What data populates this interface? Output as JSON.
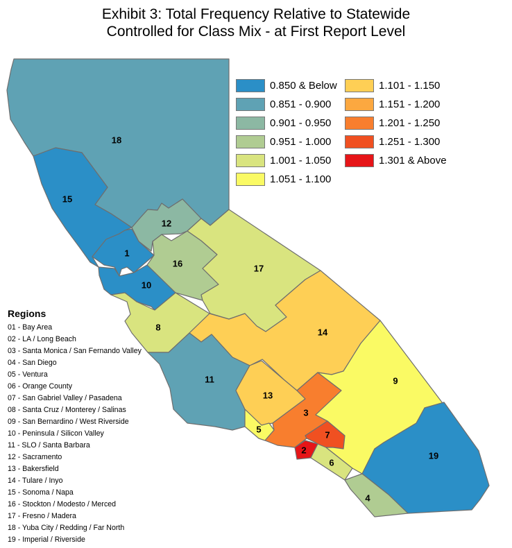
{
  "title": {
    "line1": "Exhibit 3: Total Frequency Relative to Statewide",
    "line2": "Controlled for Class Mix - at First Report Level"
  },
  "legend": [
    {
      "label": "0.850 & Below",
      "color": "#2b8fc7"
    },
    {
      "label": "0.851 - 0.900",
      "color": "#5fa2b4"
    },
    {
      "label": "0.901 - 0.950",
      "color": "#8cb8a3"
    },
    {
      "label": "0.951 - 1.000",
      "color": "#b0cc92"
    },
    {
      "label": "1.001 - 1.050",
      "color": "#d9e47f"
    },
    {
      "label": "1.051 - 1.100",
      "color": "#fafa64"
    },
    {
      "label": "1.101 - 1.150",
      "color": "#fecf55"
    },
    {
      "label": "1.151 - 1.200",
      "color": "#fca840"
    },
    {
      "label": "1.201 - 1.250",
      "color": "#f87e2e"
    },
    {
      "label": "1.251 - 1.300",
      "color": "#f05021"
    },
    {
      "label": "1.301 & Above",
      "color": "#e61518"
    }
  ],
  "regions_list": {
    "heading": "Regions",
    "items": [
      "01 - Bay Area",
      "02 - LA / Long Beach",
      "03 - Santa Monica / San Fernando Valley",
      "04 - San Diego",
      "05 - Ventura",
      "06 - Orange County",
      "07 - San Gabriel Valley / Pasadena",
      "08 - Santa Cruz / Monterey / Salinas",
      "09 - San Bernardino / West Riverside",
      "10 - Peninsula / Silicon Valley",
      "11 - SLO / Santa Barbara",
      "12 - Sacramento",
      "13 - Bakersfield",
      "14 - Tulare / Inyo",
      "15 - Sonoma / Napa",
      "16 - Stockton / Modesto / Merced",
      "17 - Fresno / Madera",
      "18 - Yuba City / Redding / Far North",
      "19 - Imperial / Riverside"
    ]
  },
  "map_regions": [
    {
      "id": "1",
      "class": "0.850 & Below"
    },
    {
      "id": "2",
      "class": "1.301 & Above"
    },
    {
      "id": "3",
      "class": "1.201 - 1.250"
    },
    {
      "id": "4",
      "class": "0.951 - 1.000"
    },
    {
      "id": "5",
      "class": "1.051 - 1.100"
    },
    {
      "id": "6",
      "class": "1.001 - 1.050"
    },
    {
      "id": "7",
      "class": "1.251 - 1.300"
    },
    {
      "id": "8",
      "class": "1.001 - 1.050"
    },
    {
      "id": "9",
      "class": "1.051 - 1.100"
    },
    {
      "id": "10",
      "class": "0.850 & Below"
    },
    {
      "id": "11",
      "class": "0.851 - 0.900"
    },
    {
      "id": "12",
      "class": "0.901 - 0.950"
    },
    {
      "id": "13",
      "class": "1.101 - 1.150"
    },
    {
      "id": "14",
      "class": "1.101 - 1.150"
    },
    {
      "id": "15",
      "class": "0.850 & Below"
    },
    {
      "id": "16",
      "class": "0.951 - 1.000"
    },
    {
      "id": "17",
      "class": "1.001 - 1.050"
    },
    {
      "id": "18",
      "class": "0.851 - 0.900"
    },
    {
      "id": "19",
      "class": "0.850 & Below"
    }
  ]
}
